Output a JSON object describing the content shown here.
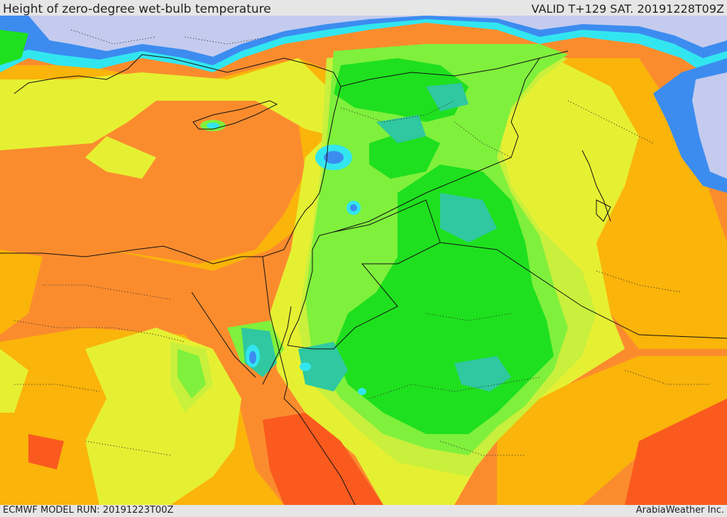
{
  "header": {
    "title": "Height of zero-degree wet-bulb temperature",
    "valid": "VALID T+129 SAT. 20191228T09Z"
  },
  "footer": {
    "model_run": "ECMWF MODEL RUN: 20191223T00Z",
    "credit": "ArabiaWeather Inc."
  },
  "colors": {
    "lavender": "#c4cbee",
    "blue": "#3c8cf0",
    "cyan": "#32e6f0",
    "teal": "#2fc8a0",
    "green": "#1ee01e",
    "light_green": "#7ff03c",
    "yellow_green": "#c8f03c",
    "yellow": "#e6f032",
    "amber": "#fab40a",
    "orange": "#fb8c2e",
    "red_orange": "#fa5a1e"
  }
}
